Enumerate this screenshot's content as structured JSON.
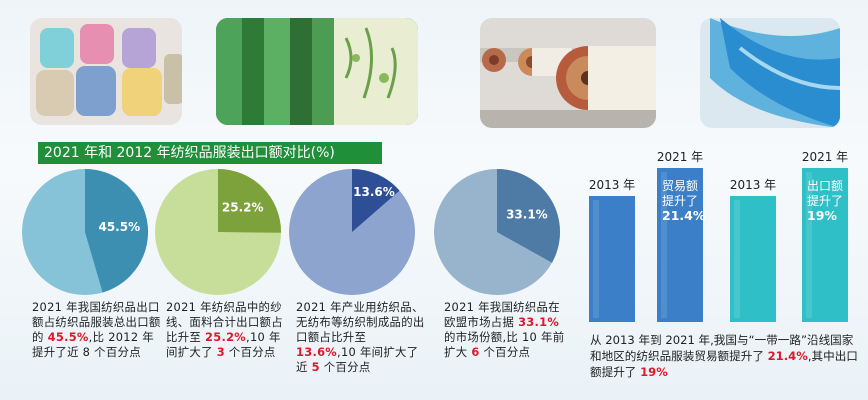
{
  "chart_data": [
    {
      "type": "pie",
      "title": "2021 年和 2012 年纺织品服装出口额对比(%)",
      "pies": [
        {
          "value": 45.5,
          "label": "45.5%",
          "highlight_color": "#3d8fb2",
          "rest_color": "#87c3d8",
          "caption_parts": [
            "2021 年我国纺织品出口额占纺织品服装总出口额的 ",
            "45.5%",
            ",比 2012 年提升了近 8 个百分点"
          ]
        },
        {
          "value": 25.2,
          "label": "25.2%",
          "highlight_color": "#7da23c",
          "rest_color": "#c7de9a",
          "caption_parts": [
            "2021 年纺织品中的纱线、面料合计出口额占比升至 ",
            "25.2%",
            ",10 年间扩大了 ",
            "3",
            " 个百分点"
          ]
        },
        {
          "value": 13.6,
          "label": "13.6%",
          "highlight_color": "#2e4f95",
          "rest_color": "#8da4cf",
          "caption_parts": [
            "2021 年产业用纺织品、无纺布等纺织制成品的出口额占比升至 ",
            "13.6%",
            ",10 年间扩大了近 ",
            "5",
            " 个百分点"
          ]
        },
        {
          "value": 33.1,
          "label": "33.1%",
          "highlight_color": "#4e7aa6",
          "rest_color": "#98b4cc",
          "caption_parts": [
            "2021 年我国纺织品在欧盟市场占据 ",
            "33.1%",
            " 的市场份额,比 10 年前扩大 ",
            "6",
            " 个百分点"
          ]
        }
      ]
    },
    {
      "type": "bar",
      "groups": [
        {
          "bars": [
            {
              "year": "2013 年",
              "color": "#3a7fc7"
            },
            {
              "year": "2021 年",
              "color": "#3a7fc7",
              "note": [
                "贸易额",
                "提升了"
              ],
              "note_value": "21.4%"
            }
          ]
        },
        {
          "bars": [
            {
              "year": "2013 年",
              "color": "#2fbfc7"
            },
            {
              "year": "2021 年",
              "color": "#2fbfc7",
              "note": [
                "出口额",
                "提升了"
              ],
              "note_value": "19%"
            }
          ]
        }
      ],
      "caption_parts": [
        "从 2013 年到 2021 年,我国与“一带一路”沿线国家和地区的纺织品服装贸易额提升了 ",
        "21.4%",
        ",其中出口额提升了 ",
        "19%"
      ]
    }
  ]
}
